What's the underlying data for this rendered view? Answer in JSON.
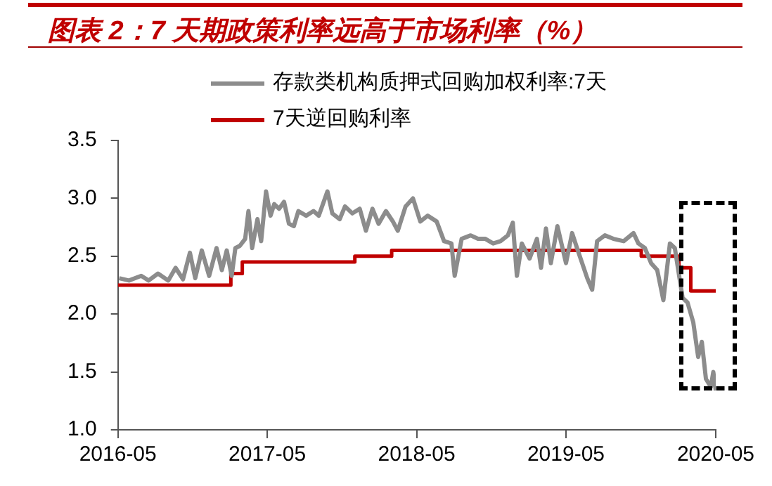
{
  "chart_data": {
    "type": "line",
    "title": "图表 2：7 天期政策利率远高于市场利率（%）",
    "xlim": [
      "2016-05",
      "2020-05"
    ],
    "xticks": [
      "2016-05",
      "2017-05",
      "2018-05",
      "2019-05",
      "2020-05"
    ],
    "ylim": [
      1,
      3.5
    ],
    "yticks": [
      {
        "value": 1,
        "label": "1.0"
      },
      1.5,
      {
        "value": 2,
        "label": "2.0"
      },
      2.5,
      {
        "value": 3,
        "label": "3.0"
      },
      3.5
    ],
    "legend": "top",
    "marker": "none",
    "series": [
      {
        "name": "存款类机构质押式回购加权利率:7天",
        "color": "#8c8c8c",
        "x": [
          "2016-05-04",
          "2016-05-28",
          "2016-06-27",
          "2016-07-15",
          "2016-08-07",
          "2016-09-01",
          "2016-09-19",
          "2016-10-07",
          "2016-10-24",
          "2016-11-06",
          "2016-11-22",
          "2016-12-10",
          "2016-12-28",
          "2017-01-10",
          "2017-01-22",
          "2017-02-03",
          "2017-02-12",
          "2017-02-23",
          "2017-03-08",
          "2017-03-16",
          "2017-03-25",
          "2017-04-07",
          "2017-04-16",
          "2017-04-28",
          "2017-05-09",
          "2017-05-18",
          "2017-05-30",
          "2017-06-11",
          "2017-06-23",
          "2017-07-05",
          "2017-07-16",
          "2017-08-04",
          "2017-08-22",
          "2017-09-04",
          "2017-09-25",
          "2017-10-07",
          "2017-10-25",
          "2017-11-07",
          "2017-11-25",
          "2017-12-13",
          "2017-12-28",
          "2018-01-13",
          "2018-01-28",
          "2018-02-15",
          "2018-03-04",
          "2018-03-16",
          "2018-04-04",
          "2018-04-22",
          "2018-05-10",
          "2018-05-28",
          "2018-06-19",
          "2018-07-07",
          "2018-07-25",
          "2018-08-02",
          "2018-08-19",
          "2018-09-10",
          "2018-09-28",
          "2018-10-16",
          "2018-11-04",
          "2018-11-22",
          "2018-12-10",
          "2018-12-22",
          "2019-01-01",
          "2019-01-13",
          "2019-02-01",
          "2019-02-19",
          "2019-03-01",
          "2019-03-13",
          "2019-03-25",
          "2019-04-10",
          "2019-05-01",
          "2019-05-16",
          "2019-05-28",
          "2019-06-22",
          "2019-07-04",
          "2019-07-16",
          "2019-08-04",
          "2019-08-25",
          "2019-09-19",
          "2019-10-13",
          "2019-10-25",
          "2019-11-10",
          "2019-11-25",
          "2019-12-10",
          "2019-12-25",
          "2020-01-10",
          "2020-01-22",
          "2020-02-10",
          "2020-02-22",
          "2020-03-07",
          "2020-03-19",
          "2020-03-28",
          "2020-04-07",
          "2020-04-19",
          "2020-04-25",
          "2020-05-01"
        ],
        "values": [
          2.31,
          2.29,
          2.33,
          2.29,
          2.35,
          2.29,
          2.4,
          2.3,
          2.53,
          2.31,
          2.55,
          2.33,
          2.57,
          2.38,
          2.55,
          2.33,
          2.57,
          2.59,
          2.65,
          2.89,
          2.57,
          2.82,
          2.63,
          3.06,
          2.85,
          2.95,
          2.91,
          2.97,
          2.78,
          2.76,
          2.89,
          2.85,
          2.89,
          2.85,
          3.06,
          2.87,
          2.82,
          2.93,
          2.87,
          2.91,
          2.72,
          2.91,
          2.78,
          2.89,
          2.8,
          2.72,
          2.93,
          3.0,
          2.8,
          2.85,
          2.8,
          2.63,
          2.61,
          2.33,
          2.65,
          2.68,
          2.65,
          2.65,
          2.61,
          2.63,
          2.68,
          2.79,
          2.33,
          2.61,
          2.48,
          2.65,
          2.4,
          2.74,
          2.44,
          2.76,
          2.44,
          2.7,
          2.57,
          2.31,
          2.21,
          2.63,
          2.68,
          2.65,
          2.63,
          2.7,
          2.61,
          2.57,
          2.44,
          2.38,
          2.12,
          2.61,
          2.57,
          2.14,
          2.1,
          1.93,
          1.63,
          1.76,
          1.44,
          1.37,
          1.5,
          1.34
        ]
      },
      {
        "name": "7天逆回购利率",
        "type": "step",
        "color": "#c00000",
        "x": [
          "2016-05-01",
          "2017-02-01",
          "2017-03-01",
          "2017-12-01",
          "2018-03-01",
          "2019-11-01",
          "2020-02-01",
          "2020-03-01",
          "2020-05-01"
        ],
        "values": [
          2.25,
          2.35,
          2.45,
          2.5,
          2.55,
          2.5,
          2.4,
          2.2,
          2.2
        ]
      }
    ]
  }
}
